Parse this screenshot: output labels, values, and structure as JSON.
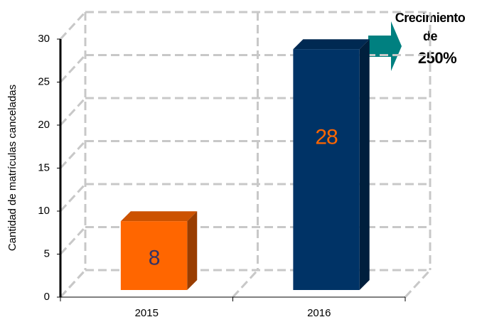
{
  "chart_data": {
    "type": "bar3d",
    "y_label": "Cantidad de matrículas canceladas",
    "categories": [
      "2015",
      "2016"
    ],
    "values": [
      8,
      28
    ],
    "colors": [
      "#ff6600",
      "#003366"
    ],
    "ylim": [
      0,
      30
    ],
    "yticks": [
      0,
      5,
      10,
      15,
      20,
      25,
      30
    ],
    "grid": true,
    "annotation": [
      "Crecimiento",
      "de",
      "250%"
    ]
  }
}
